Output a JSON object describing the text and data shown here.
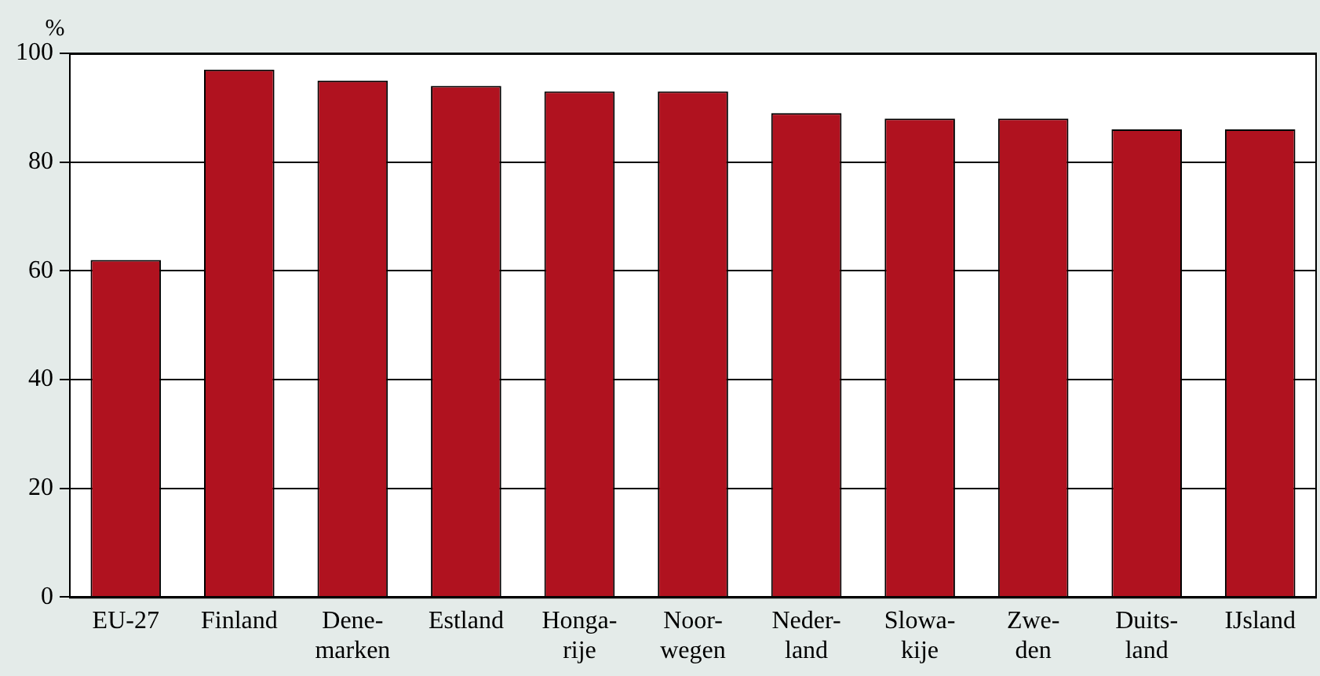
{
  "chart_data": {
    "type": "bar",
    "ylabel": "%",
    "categories": [
      "EU-27",
      "Finland",
      "Dene-\nmarken",
      "Estland",
      "Honga-\nrije",
      "Noor-\nwegen",
      "Neder-\nland",
      "Slowa-\nkije",
      "Zwe-\nden",
      "Duits-\nland",
      "IJsland"
    ],
    "values": [
      62,
      97,
      95,
      94,
      93,
      93,
      89,
      88,
      88,
      86,
      86
    ],
    "color": "#b0121f",
    "ylim": [
      0,
      100
    ],
    "yticks": [
      0,
      20,
      40,
      60,
      80,
      100
    ],
    "grid": "y",
    "legend": false
  }
}
